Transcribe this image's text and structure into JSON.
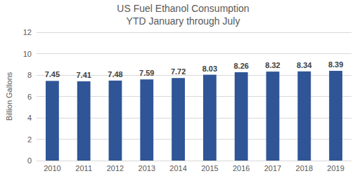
{
  "chart_data": {
    "type": "bar",
    "title": "US Fuel Ethanol Consumption",
    "subtitle": "YTD January through July",
    "y_label": "Billion Gallons",
    "categories": [
      "2010",
      "2011",
      "2012",
      "2013",
      "2014",
      "2015",
      "2016",
      "2017",
      "2018",
      "2019"
    ],
    "values": [
      7.45,
      7.41,
      7.48,
      7.59,
      7.72,
      8.03,
      8.26,
      8.32,
      8.34,
      8.39
    ],
    "color": "#2f5597",
    "ylim": [
      0,
      12
    ],
    "yticks": [
      0,
      2,
      4,
      6,
      8,
      10,
      12
    ],
    "grid": true,
    "data_labels": true
  }
}
